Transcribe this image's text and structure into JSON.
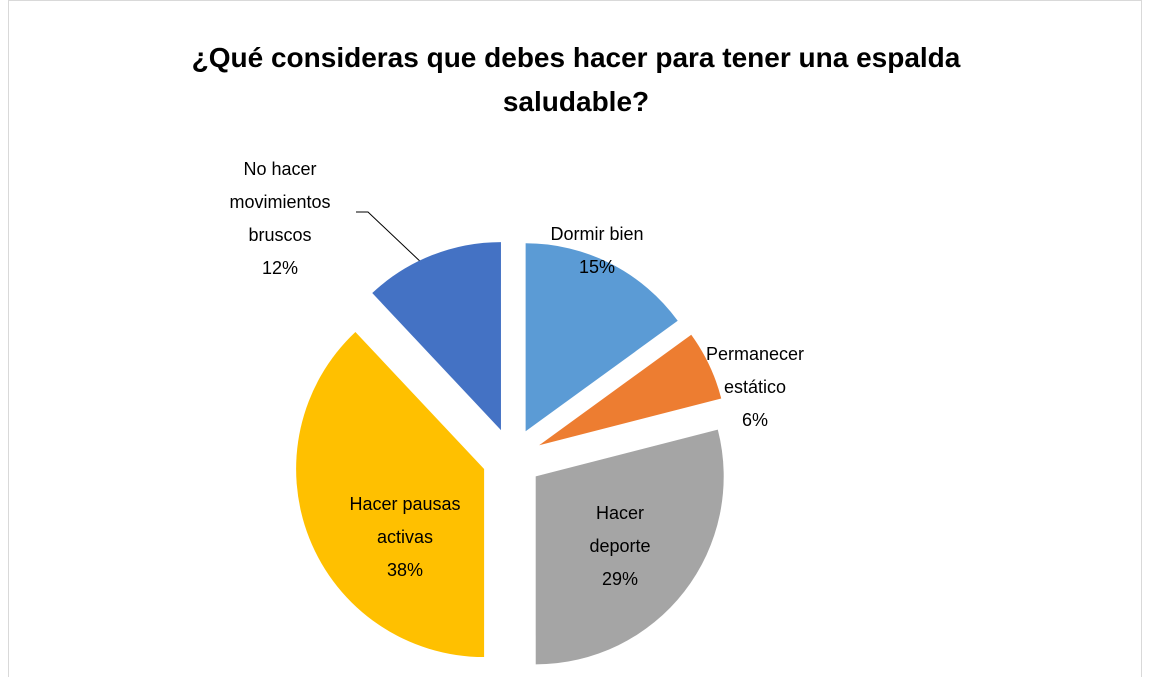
{
  "chart_data": {
    "type": "pie",
    "title": "¿Qué consideras que debes hacer para tener una espalda saludable?",
    "categories": [
      "Dormir bien",
      "Permanecer estático",
      "Hacer deporte",
      "Hacer pausas activas",
      "No hacer movimientos bruscos"
    ],
    "values": [
      15,
      6,
      29,
      38,
      12
    ],
    "value_labels": [
      "15%",
      "6%",
      "29%",
      "38%",
      "12%"
    ],
    "colors": [
      "#5b9bd5",
      "#ed7d31",
      "#a5a5a5",
      "#ffc000",
      "#4472c4"
    ]
  }
}
